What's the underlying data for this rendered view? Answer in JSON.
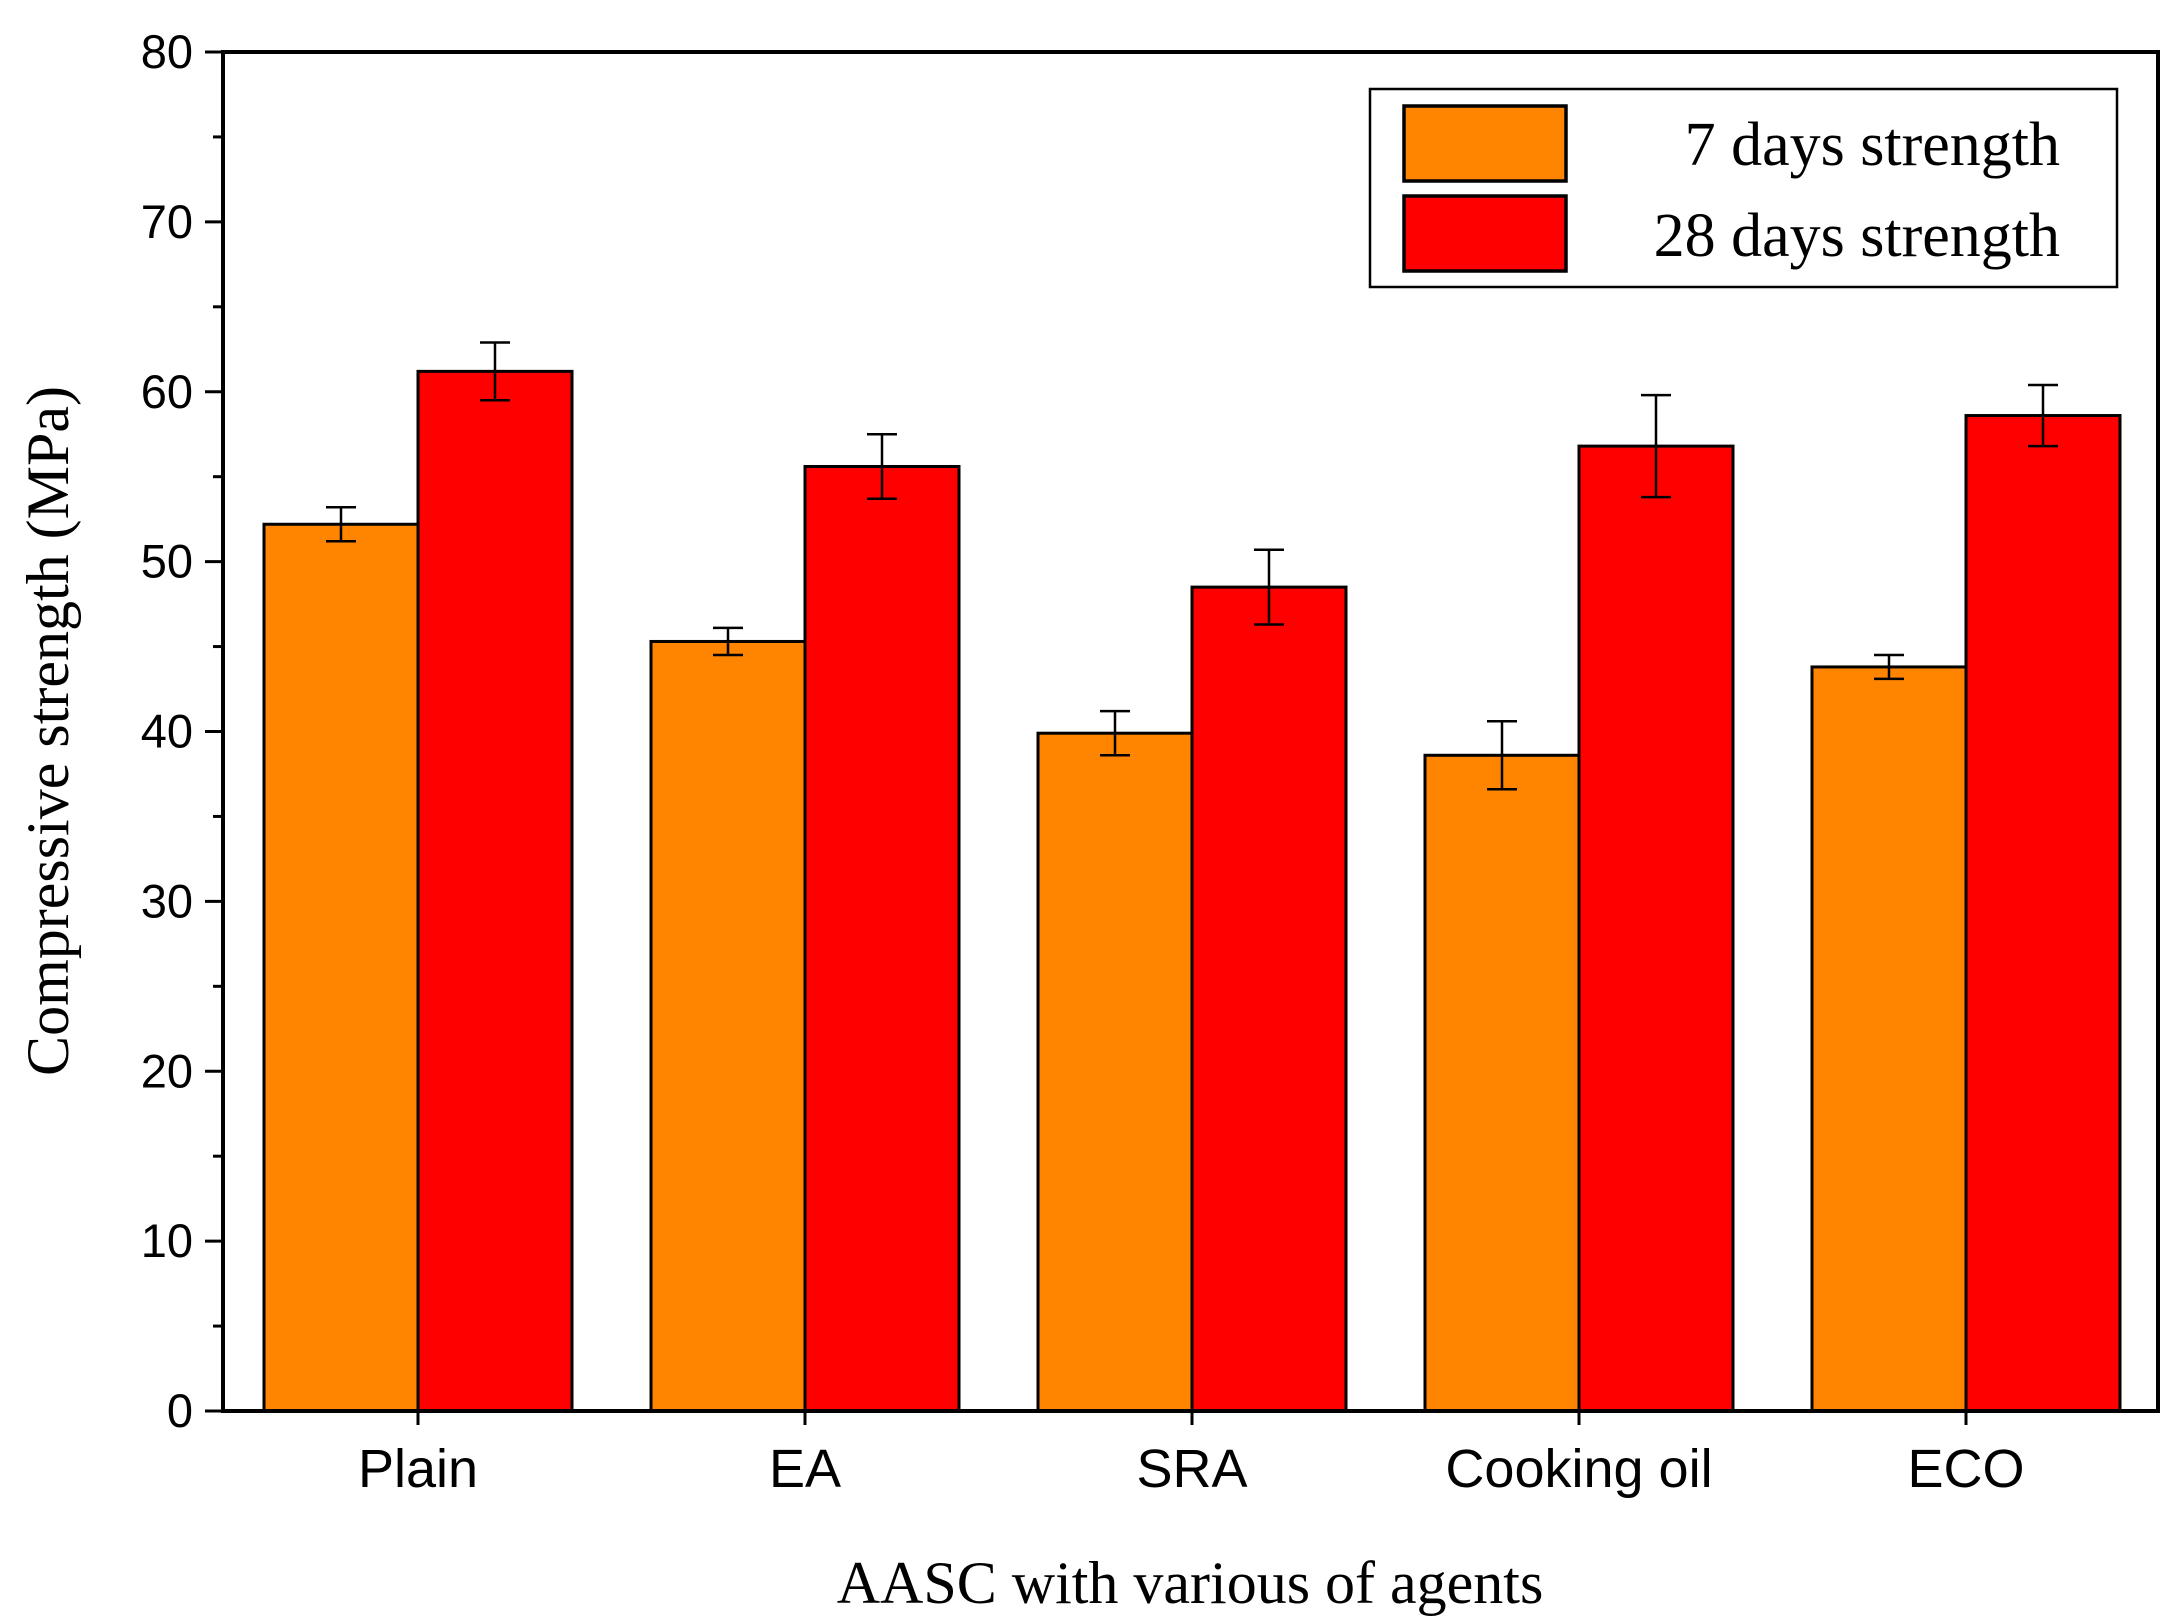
{
  "chart_data": {
    "type": "bar",
    "title": "",
    "xlabel": "AASC with various of agents",
    "ylabel": "Compressive strength (MPa)",
    "ylim": [
      0,
      80
    ],
    "yticks": [
      "0",
      "10",
      "20",
      "30",
      "40",
      "50",
      "60",
      "70",
      "80"
    ],
    "categories": [
      "Plain",
      "EA",
      "SRA",
      "Cooking oil",
      "ECO"
    ],
    "series": [
      {
        "name": "7 days strength",
        "color": "#FF8400",
        "values": [
          52.2,
          45.3,
          39.9,
          38.6,
          43.8
        ],
        "errors": [
          1.0,
          0.8,
          1.3,
          2.0,
          0.7
        ]
      },
      {
        "name": "28 days strength",
        "color": "#FF0000",
        "values": [
          61.2,
          55.6,
          48.5,
          56.8,
          58.6
        ],
        "errors": [
          1.7,
          1.9,
          2.2,
          3.0,
          1.8
        ]
      }
    ],
    "legend": "top-right",
    "grid": false
  }
}
